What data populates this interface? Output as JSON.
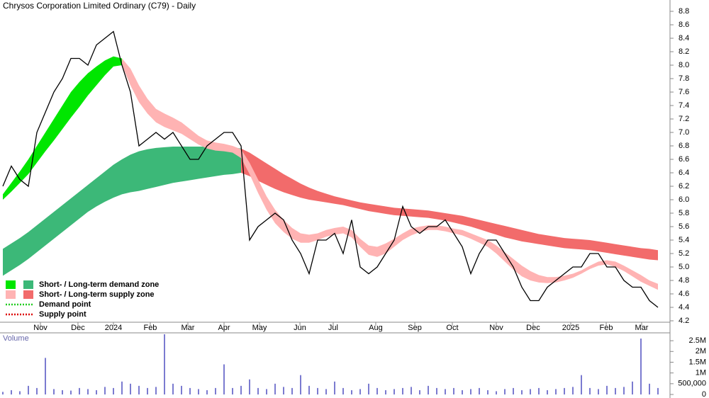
{
  "chart_data": {
    "type": "stock",
    "title": "Chrysos Corporation Limited Ordinary (C79) - Daily",
    "xticks": [
      {
        "value": 4.42,
        "label": "Nov"
      },
      {
        "value": 8.83,
        "label": "Dec"
      },
      {
        "value": 13,
        "label": "2024"
      },
      {
        "value": 17.33,
        "label": "Feb"
      },
      {
        "value": 21.75,
        "label": "Mar"
      },
      {
        "value": 26,
        "label": "Apr"
      },
      {
        "value": 30.17,
        "label": "May"
      },
      {
        "value": 34.92,
        "label": "Jun"
      },
      {
        "value": 38.83,
        "label": "Jul"
      },
      {
        "value": 43.83,
        "label": "Aug"
      },
      {
        "value": 48.42,
        "label": "Sep"
      },
      {
        "value": 52.83,
        "label": "Oct"
      },
      {
        "value": 58,
        "label": "Nov"
      },
      {
        "value": 62.33,
        "label": "Dec"
      },
      {
        "value": 66.75,
        "label": "2025"
      },
      {
        "value": 70.92,
        "label": "Feb"
      },
      {
        "value": 75.08,
        "label": "Mar"
      }
    ],
    "ylim": [
      4.1,
      8.9
    ],
    "yticks": [
      4.2,
      4.4,
      4.6,
      4.8,
      {
        "value": 5,
        "label": "5.0"
      },
      5.2,
      5.4,
      5.6,
      5.8,
      {
        "value": 6,
        "label": "6.0"
      },
      6.2,
      6.4,
      6.6,
      6.8,
      {
        "value": 7,
        "label": "7.0"
      },
      7.2,
      7.4,
      7.6,
      7.8,
      {
        "value": 8,
        "label": "8.0"
      },
      8.2,
      8.4,
      8.6,
      8.8
    ],
    "price": {
      "color": "#000000",
      "values": [
        6.2,
        6.5,
        6.3,
        6.2,
        7.0,
        7.3,
        7.6,
        7.8,
        8.1,
        8.1,
        8.0,
        8.3,
        8.4,
        8.5,
        8.0,
        7.6,
        6.8,
        6.9,
        7.0,
        6.9,
        7.0,
        6.8,
        6.6,
        6.6,
        6.8,
        6.9,
        7.0,
        7.0,
        6.8,
        5.4,
        5.6,
        5.7,
        5.8,
        5.7,
        5.4,
        5.2,
        4.9,
        5.4,
        5.4,
        5.5,
        5.2,
        5.7,
        5.0,
        4.9,
        5.0,
        5.2,
        5.4,
        5.9,
        5.6,
        5.5,
        5.6,
        5.6,
        5.7,
        5.5,
        5.3,
        4.9,
        5.2,
        5.4,
        5.4,
        5.2,
        5.0,
        4.7,
        4.5,
        4.5,
        4.7,
        4.8,
        4.9,
        5.0,
        5.0,
        5.2,
        5.2,
        5.0,
        5.0,
        4.8,
        4.7,
        4.7,
        4.5,
        4.4
      ]
    },
    "zones": [
      {
        "color": "#3cb878",
        "upper": [
          5.27,
          5.35,
          5.43,
          5.52,
          5.62,
          5.72,
          5.82,
          5.92,
          6.02,
          6.12,
          6.22,
          6.32,
          6.42,
          6.52,
          6.6,
          6.67,
          6.72,
          6.75,
          6.77,
          6.78,
          6.79,
          6.79,
          6.79,
          6.79,
          6.79,
          6.79,
          6.79,
          6.78,
          6.76,
          null,
          null,
          null,
          null,
          null,
          null,
          null,
          null,
          null,
          null,
          null,
          null,
          null,
          null,
          null,
          null,
          null,
          null,
          null,
          null,
          null,
          null,
          null,
          null,
          null,
          null,
          null,
          null,
          null,
          null,
          null,
          null,
          null,
          null,
          null,
          null,
          null,
          null,
          null,
          null,
          null,
          null,
          null,
          null,
          null,
          null,
          null,
          null,
          null
        ],
        "lower": [
          4.87,
          4.95,
          5.03,
          5.12,
          5.22,
          5.32,
          5.42,
          5.52,
          5.62,
          5.72,
          5.82,
          5.9,
          5.97,
          6.03,
          6.08,
          6.11,
          6.13,
          6.16,
          6.19,
          6.22,
          6.25,
          6.27,
          6.29,
          6.31,
          6.33,
          6.35,
          6.37,
          6.38,
          6.4,
          null,
          null,
          null,
          null,
          null,
          null,
          null,
          null,
          null,
          null,
          null,
          null,
          null,
          null,
          null,
          null,
          null,
          null,
          null,
          null,
          null,
          null,
          null,
          null,
          null,
          null,
          null,
          null,
          null,
          null,
          null,
          null,
          null,
          null,
          null,
          null,
          null,
          null,
          null,
          null,
          null,
          null,
          null,
          null,
          null,
          null,
          null,
          null,
          null
        ]
      },
      {
        "color": "#f26b6b",
        "upper": [
          null,
          null,
          null,
          null,
          null,
          null,
          null,
          null,
          null,
          null,
          null,
          null,
          null,
          null,
          null,
          null,
          null,
          null,
          null,
          null,
          null,
          null,
          null,
          null,
          null,
          null,
          null,
          null,
          6.76,
          6.7,
          6.62,
          6.54,
          6.46,
          6.38,
          6.31,
          6.24,
          6.18,
          6.13,
          6.09,
          6.05,
          6.02,
          5.99,
          5.96,
          5.94,
          5.92,
          5.9,
          5.88,
          5.87,
          5.86,
          5.85,
          5.84,
          5.82,
          5.8,
          5.78,
          5.76,
          5.73,
          5.7,
          5.67,
          5.64,
          5.61,
          5.58,
          5.55,
          5.52,
          5.49,
          5.47,
          5.45,
          5.43,
          5.42,
          5.41,
          5.4,
          5.38,
          5.36,
          5.34,
          5.32,
          5.3,
          5.28,
          5.27,
          5.25
        ],
        "lower": [
          null,
          null,
          null,
          null,
          null,
          null,
          null,
          null,
          null,
          null,
          null,
          null,
          null,
          null,
          null,
          null,
          null,
          null,
          null,
          null,
          null,
          null,
          null,
          null,
          null,
          null,
          null,
          null,
          6.4,
          6.35,
          6.28,
          6.22,
          6.16,
          6.11,
          6.07,
          6.03,
          6.0,
          5.98,
          5.96,
          5.94,
          5.92,
          5.89,
          5.86,
          5.83,
          5.81,
          5.79,
          5.77,
          5.76,
          5.75,
          5.74,
          5.73,
          5.71,
          5.69,
          5.66,
          5.63,
          5.6,
          5.56,
          5.52,
          5.48,
          5.44,
          5.41,
          5.38,
          5.36,
          5.34,
          5.32,
          5.3,
          5.28,
          5.27,
          5.26,
          5.25,
          5.23,
          5.21,
          5.19,
          5.17,
          5.15,
          5.13,
          5.11,
          5.1
        ]
      },
      {
        "color": "#00e600",
        "upper": [
          6.08,
          6.25,
          6.42,
          6.6,
          6.8,
          7.0,
          7.2,
          7.4,
          7.6,
          7.75,
          7.88,
          7.98,
          8.07,
          8.13,
          8.1,
          null,
          null,
          null,
          null,
          null,
          null,
          null,
          null,
          null,
          null,
          null,
          null,
          null,
          null,
          null,
          null,
          null,
          null,
          null,
          null,
          null,
          null,
          null,
          null,
          null,
          null,
          null,
          null,
          null,
          null,
          null,
          null,
          null,
          null,
          null,
          null,
          null,
          null,
          null,
          null,
          null,
          null,
          null,
          null,
          null,
          null,
          null,
          null,
          null,
          null,
          null,
          null,
          null,
          null,
          null,
          null,
          null,
          null,
          null,
          null,
          null,
          null,
          null
        ],
        "lower": [
          6.0,
          6.12,
          6.25,
          6.38,
          6.55,
          6.72,
          6.88,
          7.05,
          7.22,
          7.38,
          7.55,
          7.7,
          7.85,
          7.98,
          8.0,
          null,
          null,
          null,
          null,
          null,
          null,
          null,
          null,
          null,
          null,
          null,
          null,
          null,
          null,
          null,
          null,
          null,
          null,
          null,
          null,
          null,
          null,
          null,
          null,
          null,
          null,
          null,
          null,
          null,
          null,
          null,
          null,
          null,
          null,
          null,
          null,
          null,
          null,
          null,
          null,
          null,
          null,
          null,
          null,
          null,
          null,
          null,
          null,
          null,
          null,
          null,
          null,
          null,
          null,
          null,
          null,
          null,
          null,
          null,
          null,
          null,
          null,
          null
        ]
      },
      {
        "color": "#ffb3b3",
        "upper": [
          null,
          null,
          null,
          null,
          null,
          null,
          null,
          null,
          null,
          null,
          null,
          null,
          null,
          null,
          8.1,
          7.95,
          7.7,
          7.5,
          7.35,
          7.28,
          7.22,
          7.15,
          7.05,
          6.95,
          6.88,
          6.85,
          6.83,
          6.8,
          6.75,
          6.55,
          6.3,
          6.05,
          5.85,
          5.7,
          5.58,
          5.5,
          5.48,
          5.5,
          5.55,
          5.58,
          5.6,
          5.55,
          5.42,
          5.32,
          5.3,
          5.35,
          5.42,
          5.5,
          5.57,
          5.6,
          5.62,
          5.62,
          5.6,
          5.57,
          5.55,
          5.5,
          5.45,
          5.4,
          5.32,
          5.22,
          5.12,
          5.02,
          4.94,
          4.88,
          4.85,
          4.85,
          4.87,
          4.9,
          4.95,
          5.02,
          5.08,
          5.1,
          5.08,
          5.02,
          4.95,
          4.88,
          4.8,
          4.75
        ],
        "lower": [
          null,
          null,
          null,
          null,
          null,
          null,
          null,
          null,
          null,
          null,
          null,
          null,
          null,
          null,
          8.0,
          7.7,
          7.45,
          7.28,
          7.15,
          7.08,
          7.03,
          6.98,
          6.9,
          6.82,
          6.76,
          6.73,
          6.72,
          6.7,
          6.62,
          6.38,
          6.1,
          5.85,
          5.65,
          5.52,
          5.42,
          5.36,
          5.36,
          5.4,
          5.45,
          5.48,
          5.5,
          5.44,
          5.3,
          5.18,
          5.15,
          5.2,
          5.3,
          5.4,
          5.47,
          5.52,
          5.55,
          5.55,
          5.53,
          5.5,
          5.47,
          5.42,
          5.36,
          5.3,
          5.2,
          5.08,
          4.96,
          4.86,
          4.8,
          4.77,
          4.76,
          4.77,
          4.8,
          4.84,
          4.9,
          4.97,
          5.02,
          5.04,
          5.0,
          4.94,
          4.86,
          4.78,
          4.72,
          4.66
        ]
      }
    ],
    "legend": [
      {
        "label": "Short- / Long-term demand zone",
        "colors": [
          "#00e600",
          "#3cb878"
        ]
      },
      {
        "label": "Short- / Long-term supply zone",
        "colors": [
          "#ffb3b3",
          "#f26b6b"
        ]
      },
      {
        "label": "Demand point",
        "color": "#22cc22"
      },
      {
        "label": "Supply point",
        "color": "#dd0000"
      }
    ],
    "volume": {
      "label": "Volume",
      "color": "#7b7bd0",
      "values": [
        120000,
        200000,
        150000,
        400000,
        300000,
        1700000,
        250000,
        200000,
        180000,
        300000,
        250000,
        200000,
        350000,
        300000,
        600000,
        500000,
        400000,
        300000,
        350000,
        2800000,
        500000,
        400000,
        300000,
        250000,
        200000,
        300000,
        1400000,
        300000,
        400000,
        700000,
        300000,
        250000,
        500000,
        350000,
        300000,
        900000,
        400000,
        300000,
        250000,
        600000,
        300000,
        200000,
        250000,
        500000,
        300000,
        200000,
        250000,
        300000,
        350000,
        200000,
        400000,
        300000,
        250000,
        300000,
        200000,
        250000,
        300000,
        200000,
        150000,
        250000,
        300000,
        200000,
        250000,
        300000,
        200000,
        250000,
        300000,
        350000,
        900000,
        300000,
        250000,
        400000,
        300000,
        350000,
        600000,
        2600000,
        500000,
        300000
      ],
      "ylim": [
        0,
        2800000
      ],
      "yticks": [
        0,
        {
          "value": 500000,
          "label": "500,000"
        },
        {
          "value": 1000000,
          "label": "1M"
        },
        {
          "value": 1500000,
          "label": "1.5M"
        },
        {
          "value": 2000000,
          "label": "2M"
        },
        {
          "value": 2500000,
          "label": "2.5M"
        }
      ]
    }
  }
}
